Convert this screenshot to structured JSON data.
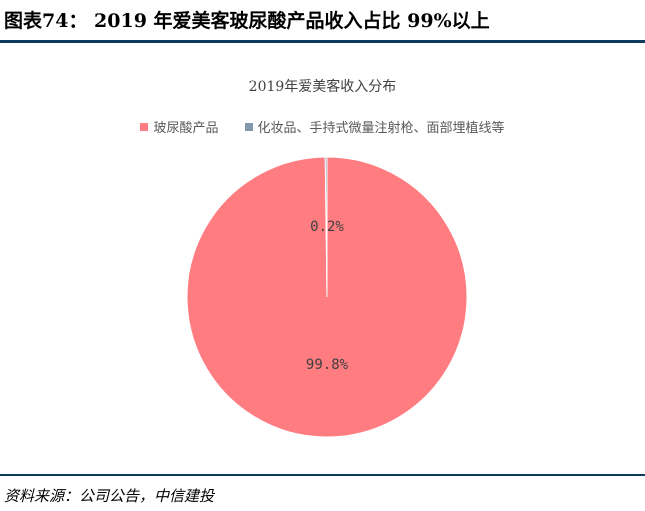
{
  "figure": {
    "title": "图表74： 2019 年爱美客玻尿酸产品收入占比 99%以上",
    "source": "资料来源：公司公告，中信建投"
  },
  "chart_data": {
    "type": "pie",
    "title": "2019年爱美客收入分布",
    "legend_position": "top",
    "slices": [
      {
        "label": "玻尿酸产品",
        "value": 99.8,
        "display": "99.8%",
        "color": "#ff7c80"
      },
      {
        "label": "化妆品、手持式微量注射枪、面部埋植线等",
        "value": 0.2,
        "display": "0.2%",
        "color": "#8497b0"
      }
    ]
  },
  "colors": {
    "rule": "#0e3a5c"
  }
}
